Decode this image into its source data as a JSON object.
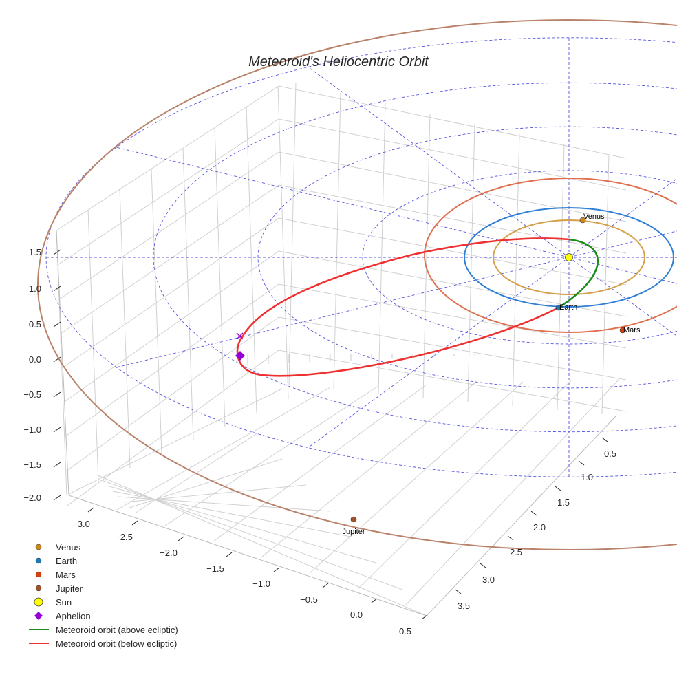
{
  "chart_data": {
    "type": "3d-line",
    "title": "Meteoroid's Heliocentric Orbit",
    "axes": {
      "x": {
        "ticks": [
          "−3.0",
          "−2.5",
          "−2.0",
          "−1.5",
          "−1.0",
          "−0.5",
          "0.0",
          "0.5"
        ],
        "range": [
          -3.2,
          0.6
        ]
      },
      "y": {
        "ticks": [
          "0.5",
          "1.0",
          "1.5",
          "2.0",
          "2.5",
          "3.0",
          "3.5"
        ],
        "range": [
          0.3,
          3.8
        ]
      },
      "z": {
        "ticks": [
          "1.5",
          "1.0",
          "0.5",
          "0.0",
          "−0.5",
          "−1.0",
          "−1.5",
          "−2.0"
        ],
        "range": [
          -2.1,
          1.7
        ]
      }
    },
    "planets": [
      {
        "name": "Venus",
        "label": "Venus",
        "color": "#c98a1a",
        "orbit_color": "#d4a04a",
        "orbit_au": 0.72
      },
      {
        "name": "Earth",
        "label": "Earth",
        "color": "#1f77b4",
        "orbit_color": "#2f7fd6",
        "orbit_au": 1.0
      },
      {
        "name": "Mars",
        "label": "Mars",
        "color": "#d2410c",
        "orbit_color": "#e07050",
        "orbit_au": 1.52
      },
      {
        "name": "Jupiter",
        "label": "Jupiter",
        "color": "#a0522d",
        "orbit_color": "#b9826a",
        "orbit_au": 5.2
      }
    ],
    "sun": {
      "color": "#ffff00"
    },
    "aphelion": {
      "color": "#9400d3"
    },
    "series": [
      {
        "name": "Meteoroid orbit (above ecliptic)",
        "color": "#1a8c1a"
      },
      {
        "name": "Meteoroid orbit (below ecliptic)",
        "color": "#f03030"
      }
    ],
    "ecliptic_grid_color": "#5555dd",
    "legend": {
      "placement": "bottom-left",
      "entries": [
        "Venus",
        "Earth",
        "Mars",
        "Jupiter",
        "Sun",
        "Aphelion",
        "Meteoroid orbit (above ecliptic)",
        "Meteoroid orbit (below ecliptic)"
      ]
    }
  }
}
